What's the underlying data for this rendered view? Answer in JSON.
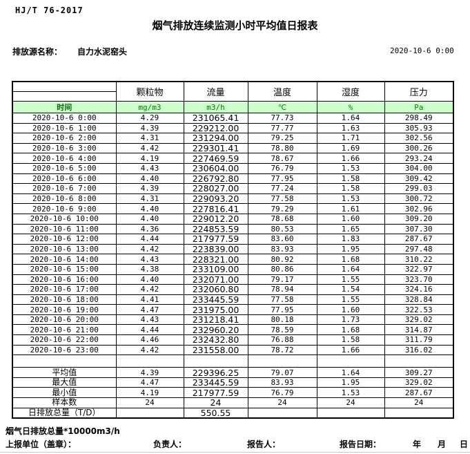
{
  "header": {
    "doc_code": "HJ/T 76-2017",
    "title": "烟气排放连续监测小时平均值日报表",
    "source_label": "排放源名称：",
    "source_name": "自力水泥窑头",
    "datetime": "2020-10-6 0:00"
  },
  "colors": {
    "header_row_bg": "#ccffcc",
    "header_row_text": "#008000",
    "time_header_text": "#056805",
    "border": "#000000"
  },
  "table": {
    "time_header": "时间",
    "columns": [
      {
        "name": "颗粒物",
        "unit": "mg/m3"
      },
      {
        "name": "流量",
        "unit": "m3/h"
      },
      {
        "name": "温度",
        "unit": "℃"
      },
      {
        "name": "湿度",
        "unit": "%"
      },
      {
        "name": "压力",
        "unit": "Pa"
      }
    ],
    "rows": [
      {
        "time": "2020-10-6 0:00",
        "values": [
          "4.29",
          "231065.41",
          "77.73",
          "1.64",
          "298.49"
        ]
      },
      {
        "time": "2020-10-6 1:00",
        "values": [
          "4.39",
          "229212.00",
          "77.77",
          "1.63",
          "305.93"
        ]
      },
      {
        "time": "2020-10-6 2:00",
        "values": [
          "4.31",
          "231294.00",
          "79.25",
          "1.71",
          "302.56"
        ]
      },
      {
        "time": "2020-10-6 3:00",
        "values": [
          "4.42",
          "229301.41",
          "78.80",
          "1.69",
          "300.26"
        ]
      },
      {
        "time": "2020-10-6 4:00",
        "values": [
          "4.19",
          "227469.59",
          "78.67",
          "1.66",
          "293.24"
        ]
      },
      {
        "time": "2020-10-6 5:00",
        "values": [
          "4.43",
          "230604.00",
          "76.79",
          "1.53",
          "304.00"
        ]
      },
      {
        "time": "2020-10-6 6:00",
        "values": [
          "4.40",
          "226792.80",
          "77.95",
          "1.58",
          "309.42"
        ]
      },
      {
        "time": "2020-10-6 7:00",
        "values": [
          "4.39",
          "228027.00",
          "77.24",
          "1.58",
          "299.03"
        ]
      },
      {
        "time": "2020-10-6 8:00",
        "values": [
          "4.31",
          "229093.20",
          "77.58",
          "1.53",
          "300.72"
        ]
      },
      {
        "time": "2020-10-6 9:00",
        "values": [
          "4.40",
          "227816.41",
          "79.29",
          "1.61",
          "302.96"
        ]
      },
      {
        "time": "2020-10-6 10:00",
        "values": [
          "4.40",
          "229012.20",
          "78.68",
          "1.60",
          "309.20"
        ]
      },
      {
        "time": "2020-10-6 11:00",
        "values": [
          "4.36",
          "224853.59",
          "80.53",
          "1.65",
          "307.30"
        ]
      },
      {
        "time": "2020-10-6 12:00",
        "values": [
          "4.44",
          "217977.59",
          "83.60",
          "1.83",
          "287.67"
        ]
      },
      {
        "time": "2020-10-6 13:00",
        "values": [
          "4.42",
          "223839.00",
          "83.93",
          "1.95",
          "297.48"
        ]
      },
      {
        "time": "2020-10-6 14:00",
        "values": [
          "4.43",
          "228321.00",
          "80.92",
          "1.68",
          "310.22"
        ]
      },
      {
        "time": "2020-10-6 15:00",
        "values": [
          "4.38",
          "233109.00",
          "80.86",
          "1.64",
          "322.97"
        ]
      },
      {
        "time": "2020-10-6 16:00",
        "values": [
          "4.40",
          "232071.00",
          "79.17",
          "1.55",
          "323.70"
        ]
      },
      {
        "time": "2020-10-6 17:00",
        "values": [
          "4.42",
          "232060.80",
          "78.94",
          "1.54",
          "324.16"
        ]
      },
      {
        "time": "2020-10-6 18:00",
        "values": [
          "4.41",
          "233445.59",
          "77.58",
          "1.55",
          "328.84"
        ]
      },
      {
        "time": "2020-10-6 19:00",
        "values": [
          "4.47",
          "231975.00",
          "77.95",
          "1.60",
          "322.53"
        ]
      },
      {
        "time": "2020-10-6 20:00",
        "values": [
          "4.43",
          "231218.41",
          "80.18",
          "1.73",
          "329.02"
        ]
      },
      {
        "time": "2020-10-6 21:00",
        "values": [
          "4.44",
          "232960.20",
          "78.59",
          "1.68",
          "314.87"
        ]
      },
      {
        "time": "2020-10-6 22:00",
        "values": [
          "4.46",
          "232432.80",
          "76.88",
          "1.58",
          "311.79"
        ]
      },
      {
        "time": "2020-10-6 23:00",
        "values": [
          "4.42",
          "231558.00",
          "78.72",
          "1.66",
          "316.02"
        ]
      }
    ],
    "summary": [
      {
        "label": "平均值",
        "values": [
          "4.39",
          "229396.25",
          "79.07",
          "1.64",
          "309.27"
        ]
      },
      {
        "label": "最大值",
        "values": [
          "4.47",
          "233445.59",
          "83.93",
          "1.95",
          "329.02"
        ]
      },
      {
        "label": "最小值",
        "values": [
          "4.19",
          "217977.59",
          "76.79",
          "1.53",
          "287.67"
        ]
      },
      {
        "label": "样本数",
        "values": [
          "24",
          "24",
          "24",
          "24",
          "24"
        ]
      },
      {
        "label": "日排放总量（T/D）",
        "values": [
          "",
          "550.55",
          "",
          "",
          ""
        ]
      }
    ]
  },
  "footer": {
    "footnote": "烟气日排放总量*10000m3/h",
    "unit_label": "上报单位（盖章）：",
    "responsible_label": "负责人：",
    "reporter_label": "报告人：",
    "report_date_label": "报告日期：",
    "year_label": "年",
    "month_label": "月",
    "day_label": "日"
  }
}
